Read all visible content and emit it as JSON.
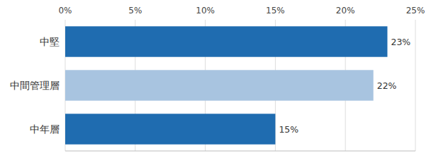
{
  "chart_data": {
    "type": "bar",
    "orientation": "horizontal",
    "categories": [
      "中堅",
      "中間管理層",
      "中年層"
    ],
    "values": [
      23,
      22,
      15
    ],
    "colors": [
      "#1F6CB0",
      "#A8C4E0",
      "#1F6CB0"
    ],
    "value_labels": [
      "23%",
      "22%",
      "15%"
    ],
    "data_labels": true,
    "xlim": [
      0,
      25
    ],
    "xticks": [
      {
        "value": 0,
        "label": "0%"
      },
      {
        "value": 5,
        "label": "5%"
      },
      {
        "value": 10,
        "label": "10%"
      },
      {
        "value": 15,
        "label": "15%"
      },
      {
        "value": 20,
        "label": "20%"
      },
      {
        "value": 25,
        "label": "25%"
      }
    ],
    "grid": true
  }
}
